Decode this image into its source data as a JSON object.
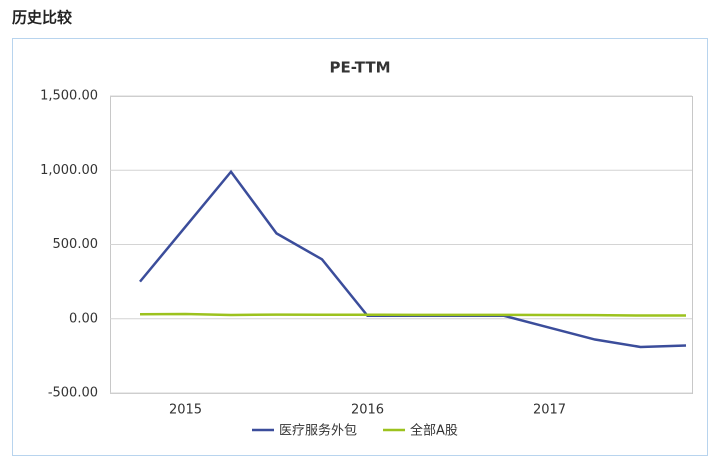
{
  "header": {
    "title": "历史比较"
  },
  "chart_data": {
    "type": "line",
    "title": "PE-TTM",
    "categories": [
      null,
      "2015",
      null,
      null,
      null,
      "2016",
      null,
      null,
      null,
      "2017",
      null,
      null,
      null
    ],
    "series": [
      {
        "name": "医疗服务外包",
        "color": "#3b4d9b",
        "values": [
          250,
          620,
          990,
          575,
          400,
          20,
          20,
          20,
          20,
          -60,
          -140,
          -190,
          -180
        ]
      },
      {
        "name": "全部A股",
        "color": "#9cc21e",
        "values": [
          30,
          32,
          25,
          28,
          27,
          27,
          26,
          26,
          26,
          25,
          24,
          22,
          22
        ]
      }
    ],
    "ylim": [
      -500,
      1500
    ],
    "yticks": [
      {
        "value": -500,
        "label": "-500.00"
      },
      {
        "value": 0,
        "label": "0.00"
      },
      {
        "value": 500,
        "label": "500.00"
      },
      {
        "value": 1000,
        "label": "1,000.00"
      },
      {
        "value": 1500,
        "label": "1,500.00"
      }
    ],
    "grid": true,
    "legend": "bottom"
  }
}
